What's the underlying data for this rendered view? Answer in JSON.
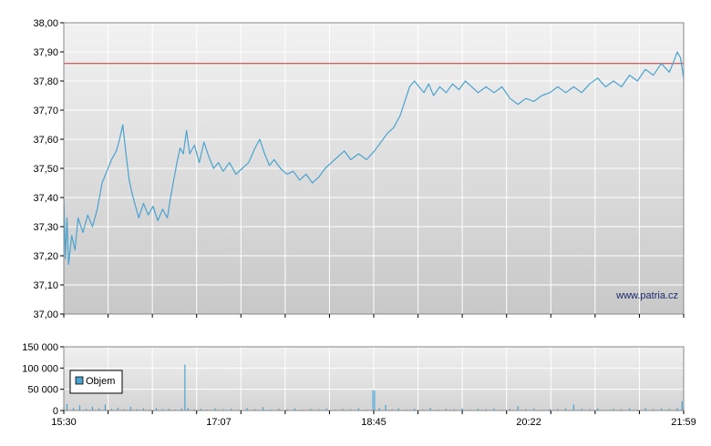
{
  "chart_data": [
    {
      "type": "line",
      "title": "",
      "xlabel": "",
      "ylabel": "",
      "ylim": [
        37.0,
        38.0
      ],
      "y_ticks": [
        "37,00",
        "37,10",
        "37,20",
        "37,30",
        "37,40",
        "37,50",
        "37,60",
        "37,70",
        "37,80",
        "37,90",
        "38,00"
      ],
      "x_ticks": [
        "15:30",
        "17:07",
        "18:45",
        "20:22",
        "21:59"
      ],
      "reference_line": 37.86,
      "reference_color": "#cc3333",
      "line_color": "#4aa3cf",
      "watermark": "www.patria.cz",
      "grid": true,
      "series": [
        {
          "points": [
            [
              "15:30",
              37.4
            ],
            [
              "15:31",
              37.19
            ],
            [
              "15:32",
              37.33
            ],
            [
              "15:33",
              37.17
            ],
            [
              "15:35",
              37.27
            ],
            [
              "15:37",
              37.22
            ],
            [
              "15:39",
              37.33
            ],
            [
              "15:42",
              37.28
            ],
            [
              "15:45",
              37.34
            ],
            [
              "15:48",
              37.3
            ],
            [
              "15:51",
              37.36
            ],
            [
              "15:54",
              37.45
            ],
            [
              "15:57",
              37.49
            ],
            [
              "16:00",
              37.53
            ],
            [
              "16:03",
              37.56
            ],
            [
              "16:05",
              37.6
            ],
            [
              "16:07",
              37.65
            ],
            [
              "16:09",
              37.55
            ],
            [
              "16:11",
              37.46
            ],
            [
              "16:13",
              37.41
            ],
            [
              "16:15",
              37.37
            ],
            [
              "16:17",
              37.33
            ],
            [
              "16:20",
              37.38
            ],
            [
              "16:23",
              37.34
            ],
            [
              "16:26",
              37.37
            ],
            [
              "16:29",
              37.32
            ],
            [
              "16:32",
              37.36
            ],
            [
              "16:35",
              37.33
            ],
            [
              "16:37",
              37.4
            ],
            [
              "16:39",
              37.46
            ],
            [
              "16:41",
              37.52
            ],
            [
              "16:43",
              37.57
            ],
            [
              "16:45",
              37.55
            ],
            [
              "16:47",
              37.63
            ],
            [
              "16:49",
              37.55
            ],
            [
              "16:52",
              37.58
            ],
            [
              "16:55",
              37.52
            ],
            [
              "16:58",
              37.59
            ],
            [
              "17:01",
              37.54
            ],
            [
              "17:04",
              37.5
            ],
            [
              "17:07",
              37.52
            ],
            [
              "17:10",
              37.49
            ],
            [
              "17:14",
              37.52
            ],
            [
              "17:18",
              37.48
            ],
            [
              "17:22",
              37.5
            ],
            [
              "17:26",
              37.52
            ],
            [
              "17:30",
              37.57
            ],
            [
              "17:33",
              37.6
            ],
            [
              "17:36",
              37.55
            ],
            [
              "17:39",
              37.51
            ],
            [
              "17:42",
              37.53
            ],
            [
              "17:46",
              37.5
            ],
            [
              "17:50",
              37.48
            ],
            [
              "17:54",
              37.49
            ],
            [
              "17:58",
              37.46
            ],
            [
              "18:02",
              37.48
            ],
            [
              "18:06",
              37.45
            ],
            [
              "18:10",
              37.47
            ],
            [
              "18:14",
              37.5
            ],
            [
              "18:18",
              37.52
            ],
            [
              "18:22",
              37.54
            ],
            [
              "18:26",
              37.56
            ],
            [
              "18:30",
              37.53
            ],
            [
              "18:35",
              37.55
            ],
            [
              "18:40",
              37.53
            ],
            [
              "18:45",
              37.56
            ],
            [
              "18:49",
              37.59
            ],
            [
              "18:53",
              37.62
            ],
            [
              "18:57",
              37.64
            ],
            [
              "19:01",
              37.68
            ],
            [
              "19:04",
              37.73
            ],
            [
              "19:07",
              37.78
            ],
            [
              "19:10",
              37.8
            ],
            [
              "19:13",
              37.78
            ],
            [
              "19:16",
              37.76
            ],
            [
              "19:19",
              37.79
            ],
            [
              "19:22",
              37.75
            ],
            [
              "19:26",
              37.78
            ],
            [
              "19:30",
              37.76
            ],
            [
              "19:34",
              37.79
            ],
            [
              "19:38",
              37.77
            ],
            [
              "19:42",
              37.8
            ],
            [
              "19:46",
              37.78
            ],
            [
              "19:50",
              37.76
            ],
            [
              "19:55",
              37.78
            ],
            [
              "20:00",
              37.76
            ],
            [
              "20:05",
              37.78
            ],
            [
              "20:10",
              37.74
            ],
            [
              "20:15",
              37.72
            ],
            [
              "20:20",
              37.74
            ],
            [
              "20:25",
              37.73
            ],
            [
              "20:30",
              37.75
            ],
            [
              "20:35",
              37.76
            ],
            [
              "20:40",
              37.78
            ],
            [
              "20:45",
              37.76
            ],
            [
              "20:50",
              37.78
            ],
            [
              "20:55",
              37.76
            ],
            [
              "21:00",
              37.79
            ],
            [
              "21:05",
              37.81
            ],
            [
              "21:10",
              37.78
            ],
            [
              "21:15",
              37.8
            ],
            [
              "21:20",
              37.78
            ],
            [
              "21:25",
              37.82
            ],
            [
              "21:30",
              37.8
            ],
            [
              "21:35",
              37.84
            ],
            [
              "21:40",
              37.82
            ],
            [
              "21:45",
              37.86
            ],
            [
              "21:50",
              37.83
            ],
            [
              "21:53",
              37.87
            ],
            [
              "21:55",
              37.9
            ],
            [
              "21:57",
              37.88
            ],
            [
              "21:59",
              37.81
            ]
          ]
        }
      ]
    },
    {
      "type": "bar",
      "title": "",
      "xlabel": "",
      "ylabel": "",
      "ylim": [
        0,
        150000
      ],
      "y_ticks": [
        "0",
        "50 000",
        "100 000",
        "150 000"
      ],
      "x_ticks": [
        "15:30",
        "17:07",
        "18:45",
        "20:22",
        "21:59"
      ],
      "legend": "Objem",
      "legend_position": "left",
      "bar_color": "#4aa3cf",
      "grid": true,
      "series": [
        {
          "name": "Objem",
          "points": [
            [
              "15:30",
              8000
            ],
            [
              "15:32",
              15000
            ],
            [
              "15:36",
              6000
            ],
            [
              "15:40",
              12000
            ],
            [
              "15:44",
              4000
            ],
            [
              "15:48",
              9000
            ],
            [
              "15:52",
              5000
            ],
            [
              "15:56",
              14000
            ],
            [
              "16:00",
              4000
            ],
            [
              "16:04",
              7000
            ],
            [
              "16:08",
              3000
            ],
            [
              "16:12",
              9000
            ],
            [
              "16:16",
              3000
            ],
            [
              "16:20",
              5000
            ],
            [
              "16:24",
              2000
            ],
            [
              "16:28",
              6000
            ],
            [
              "16:32",
              3000
            ],
            [
              "16:36",
              4000
            ],
            [
              "16:40",
              2000
            ],
            [
              "16:44",
              5000
            ],
            [
              "16:46",
              108000
            ],
            [
              "16:48",
              6000
            ],
            [
              "16:52",
              3000
            ],
            [
              "16:56",
              4000
            ],
            [
              "17:00",
              2000
            ],
            [
              "17:05",
              5000
            ],
            [
              "17:10",
              3000
            ],
            [
              "17:15",
              4000
            ],
            [
              "17:20",
              2000
            ],
            [
              "17:25",
              6000
            ],
            [
              "17:30",
              3000
            ],
            [
              "17:35",
              8000
            ],
            [
              "17:40",
              2000
            ],
            [
              "17:45",
              4000
            ],
            [
              "17:50",
              3000
            ],
            [
              "17:55",
              5000
            ],
            [
              "18:00",
              2000
            ],
            [
              "18:05",
              4000
            ],
            [
              "18:10",
              3000
            ],
            [
              "18:15",
              5000
            ],
            [
              "18:20",
              2000
            ],
            [
              "18:25",
              4000
            ],
            [
              "18:30",
              3000
            ],
            [
              "18:35",
              5000
            ],
            [
              "18:40",
              2000
            ],
            [
              "18:44",
              48000
            ],
            [
              "18:45",
              47000
            ],
            [
              "18:48",
              6000
            ],
            [
              "18:52",
              13000
            ],
            [
              "18:56",
              3000
            ],
            [
              "19:00",
              5000
            ],
            [
              "19:05",
              2000
            ],
            [
              "19:10",
              4000
            ],
            [
              "19:15",
              3000
            ],
            [
              "19:20",
              6000
            ],
            [
              "19:25",
              2000
            ],
            [
              "19:30",
              4000
            ],
            [
              "19:35",
              3000
            ],
            [
              "19:40",
              5000
            ],
            [
              "19:45",
              2000
            ],
            [
              "19:50",
              4000
            ],
            [
              "19:55",
              3000
            ],
            [
              "20:00",
              5000
            ],
            [
              "20:05",
              2000
            ],
            [
              "20:10",
              4000
            ],
            [
              "20:15",
              10000
            ],
            [
              "20:20",
              3000
            ],
            [
              "20:25",
              5000
            ],
            [
              "20:30",
              2000
            ],
            [
              "20:35",
              4000
            ],
            [
              "20:40",
              3000
            ],
            [
              "20:45",
              5000
            ],
            [
              "20:50",
              14000
            ],
            [
              "20:55",
              4000
            ],
            [
              "21:00",
              3000
            ],
            [
              "21:05",
              5000
            ],
            [
              "21:10",
              2000
            ],
            [
              "21:15",
              4000
            ],
            [
              "21:20",
              3000
            ],
            [
              "21:25",
              5000
            ],
            [
              "21:30",
              2000
            ],
            [
              "21:35",
              6000
            ],
            [
              "21:40",
              3000
            ],
            [
              "21:45",
              5000
            ],
            [
              "21:50",
              4000
            ],
            [
              "21:55",
              6000
            ],
            [
              "21:58",
              22000
            ],
            [
              "21:59",
              8000
            ]
          ]
        }
      ]
    }
  ]
}
